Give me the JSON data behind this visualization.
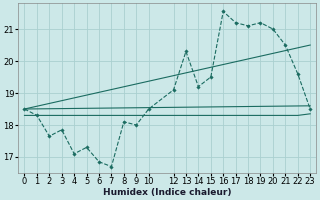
{
  "xlabel": "Humidex (Indice chaleur)",
  "bg_color": "#cce8e8",
  "grid_color": "#aad0d0",
  "line_color": "#1a6b60",
  "xlim": [
    -0.5,
    23.5
  ],
  "ylim": [
    16.5,
    21.8
  ],
  "yticks": [
    17,
    18,
    19,
    20,
    21
  ],
  "xtick_positions": [
    0,
    1,
    2,
    3,
    4,
    5,
    6,
    7,
    8,
    9,
    10,
    12,
    13,
    14,
    15,
    16,
    17,
    18,
    19,
    20,
    21,
    22,
    23
  ],
  "xtick_labels": [
    "0",
    "1",
    "2",
    "3",
    "4",
    "5",
    "6",
    "7",
    "8",
    "9",
    "10",
    "12",
    "13",
    "14",
    "15",
    "16",
    "17",
    "18",
    "19",
    "20",
    "21",
    "22",
    "23"
  ],
  "series1_x": [
    0,
    1,
    2,
    3,
    4,
    5,
    6,
    7,
    8,
    9,
    10,
    12,
    13,
    14,
    15,
    16,
    17,
    18,
    19,
    20,
    21,
    22,
    23
  ],
  "series1_y": [
    18.5,
    18.3,
    17.65,
    17.85,
    17.1,
    17.3,
    16.85,
    16.7,
    18.1,
    18.0,
    18.5,
    19.1,
    20.3,
    19.2,
    19.5,
    21.55,
    21.2,
    21.1,
    21.2,
    21.0,
    20.5,
    19.6,
    18.5
  ],
  "series2_x": [
    0,
    23
  ],
  "series2_y": [
    18.5,
    18.6
  ],
  "series3_x": [
    0,
    10,
    12,
    13,
    14,
    15,
    16,
    17,
    18,
    19,
    20,
    21,
    22,
    23
  ],
  "series3_y": [
    18.3,
    18.3,
    18.3,
    18.3,
    18.3,
    18.3,
    18.3,
    18.3,
    18.3,
    18.3,
    18.3,
    18.3,
    18.3,
    18.35
  ],
  "series4_x": [
    0,
    23
  ],
  "series4_y": [
    18.5,
    20.5
  ]
}
